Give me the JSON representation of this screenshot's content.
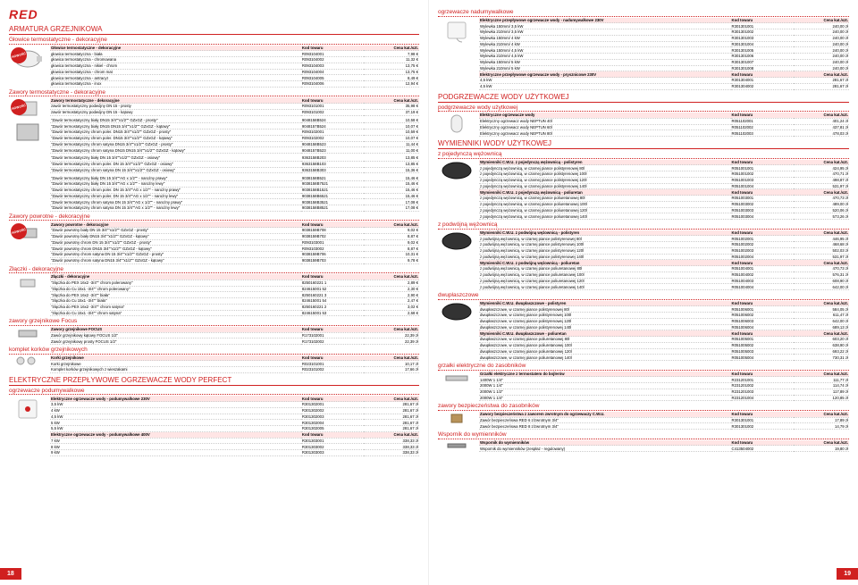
{
  "logo": "RED",
  "page_left": "18",
  "page_right": "19",
  "left": {
    "h1": "ARMATURA GRZEJNIKOWA",
    "s1": {
      "h2": "Głowice termostatyczne - dekoracyjne",
      "hdr": [
        "Głowice termostatyczne - dekoracyjne",
        "Kod towaru",
        "Cena kat./szt."
      ],
      "rows": [
        [
          "głowica termostatyczna - biała",
          "R093104001",
          "7,98 €"
        ],
        [
          "głowica termostatyczna - chromowana",
          "R093104002",
          "11,32 €"
        ],
        [
          "głowica termostatyczna - nikiel - chrom",
          "R093104003",
          "13,75 €"
        ],
        [
          "głowica termostatyczna - chrom mat",
          "R093104004",
          "13,75 €"
        ],
        [
          "głowica termostatyczna - antracyt",
          "R093104005",
          "8,49 €"
        ],
        [
          "głowica termostatyczna - inox",
          "R093104006",
          "12,94 €"
        ]
      ]
    },
    "s2": {
      "h2": "Zawory termostatyczne - dekoracyjne",
      "hdr": [
        "Zawory termostatyczne - dekoracyjne",
        "Kod towaru",
        "Cena kat./szt."
      ],
      "g1": [
        [
          "zawór termostatyczny podwójny DN 15 - prosty",
          "R093101001",
          "35,98 €"
        ],
        [
          "zawór termostatyczny podwójny DN 15 - kątowy",
          "R093101002",
          "37,19 €"
        ]
      ],
      "g2": [
        [
          "\"Zawór termostatyczny biały DN15 3/4\"\"x1/2\"\" GZxGZ - prosty\"",
          "9048158B524",
          "10,58 €"
        ],
        [
          "\"Zawór termostatyczny biały DN15 DN15 3/4\"\"x1/2\"\" GZxGZ - kątowy\"",
          "9048157B524",
          "10,07 €"
        ],
        [
          "\"Zawór termostatyczny chrom poler. DN15 3/4\"\"x1/2\"\" GZxGZ - prosty\"",
          "R093102001",
          "10,59 €"
        ],
        [
          "\"Zawór termostatyczny chrom poler. DN15 3/4\"\"x1/2\"\" GZxGZ - kątowy\"",
          "R093102002",
          "10,07 €"
        ],
        [
          "\"Zawór termostatyczny chrom satyna DN15 3/4\"\"x1/2\"\" GZxGZ - prosty\"",
          "9048158B523",
          "11,44 €"
        ],
        [
          "\"Zawór termostatyczny chrom satyna DN15 DN15 3/4\"\"x1/2\"\" GZxGZ - kątowy\"",
          "9048157B523",
          "11,00 €"
        ]
      ],
      "g3": [
        [
          "\"Zawór termostatyczny biały DN 15 3/4\"\"x1/2\"\" GZxGZ - osiowy\"",
          "9363158B203",
          "13,85 €"
        ],
        [
          "\"Zawór termostatyczny chrom poler. DN 15 3/4\"\"x1/2\"\" GZxGZ - osiowy\"",
          "9363158B103",
          "13,85 €"
        ],
        [
          "\"Zawór termostatyczny chrom satyna DN 15 3/4\"\"x1/2\"\" GZxGZ - osiowy\"",
          "9363158B303",
          "15,36 €"
        ]
      ],
      "g4": [
        [
          "\"Zawór termostatyczny biały DN 15 3/4\"\"AG x 1/2\"\" - narożny prawy\"",
          "9038158B521",
          "15,46 €"
        ],
        [
          "\"Zawór termostatyczny biały DN 15 3/4\"\"AG x 1/2\"\" - narożny lewy\"",
          "9038158B7521",
          "15,46 €"
        ],
        [
          "\"Zawór termostatyczny chrom poler. DN 15 3/4\"\"AG x 1/2\"\" - narożny prawy\"",
          "9038158B1521",
          "15,46 €"
        ],
        [
          "\"Zawór termostatyczny chrom poler. DN 15 3/4\"\"AG x 1/2\"\" - narożny lewy\"",
          "9038158B6521",
          "15,46 €"
        ],
        [
          "\"Zawór termostatyczny chrom satyna DN 15 3/4\"\"AG x 1/2\"\" - narożny prawy\"",
          "9038158B3521",
          "17,08 €"
        ],
        [
          "\"Zawór termostatyczny chrom satyna DN 15 3/4\"\"AG x 1/2\"\" - narożny lewy\"",
          "9038158B8521",
          "17,08 €"
        ]
      ]
    },
    "s3": {
      "h2": "Zawory powrotne - dekoracyjne",
      "hdr": [
        "Zawory powrotne - dekoracyjne",
        "Kod towaru",
        "Cena kat./szt."
      ],
      "rows": [
        [
          "\"Zawór powrotny biały DN 15 3/4\"\"x1/2\"\" GZxGZ - prosty\"",
          "9038159B708",
          "9,02 €"
        ],
        [
          "\"Zawór powrotny biały DN15 3/4\"\"x1/2\"\" GZxGZ - kątowy\"",
          "9038159B702",
          "8,87 €"
        ],
        [
          "\"Zawór powrotny chrom DN 15 3/4\"\"x1/2\"\" GZxGZ - prosty\"",
          "R093103001",
          "9,02 €"
        ],
        [
          "\"Zawór powrotny chrom DN15 3/4\"\"x1/2\"\" GZxGZ - kątowy\"",
          "R093103002",
          "8,87 €"
        ],
        [
          "\"Zawór powrotny chrom satyna DN 15 3/4\"\"x1/2\"\" GZxGZ - prosty\"",
          "9038159B706",
          "10,31 €"
        ],
        [
          "\"Zawór powrotny chrom satyna DN15 3/4\"\"x1/2\"\" GZxGZ - kątowy\"",
          "9038159B703",
          "9,78 €"
        ]
      ]
    },
    "s4": {
      "h2": "Złączki - dekoracyjne",
      "hdr": [
        "Złączki - dekoracyjne",
        "Kod towaru",
        "Cena kat./szt."
      ],
      "rows": [
        [
          "\"złączka do PEX 16x2 -3/4\"\" chrom polerowany\"",
          "8250160221 1",
          "2,89 €"
        ],
        [
          "\"złączka do Cu 15x1 -3/4\"\" chrom polerowany\"",
          "824615001 52",
          "2,30 €"
        ],
        [
          "\"złączka do PEX 16x2 -3/4\"\" biała\"",
          "8250160221 3",
          "2,90 €"
        ],
        [
          "\"złączka do Cu 15x1 -3/4\"\" biała\"",
          "824615001 54",
          "2,47 €"
        ],
        [
          "\"złączka do PEX 16x2 -3/4\"\" chrom satyna\"",
          "8250160221 2",
          "3,02 €"
        ],
        [
          "\"złączka do Cu 15x1 -3/4\"\" chrom satyna\"",
          "824615001 53",
          "2,68 €"
        ]
      ]
    },
    "s5": {
      "h2": "zawory grzejnikowe Focus",
      "hdr": [
        "Zawory grzejnikowe FOCUS",
        "Kod towaru",
        "Cena kat./szt."
      ],
      "rows": [
        [
          "Zawór grzejnikowy kątowy FOCUS 1/2\"",
          "R173102001",
          "22,39 zł"
        ],
        [
          "Zawór grzejnikowy prosty FOCUS 1/2\"",
          "R173102002",
          "22,39 zł"
        ]
      ]
    },
    "s6": {
      "h2": "komplet korków grzejnikowych",
      "hdr": [
        "Korki grzejnikowe",
        "Kod towaru",
        "Cena kat./szt."
      ],
      "rows": [
        [
          "Korki grzejnikowe",
          "R023101001",
          "10,17 zł"
        ],
        [
          "Komplet korków grzejnikowych z wieszakami",
          "R023101002",
          "17,66 zł"
        ]
      ]
    },
    "h1b": "ELEKTRYCZNE PRZEPŁYWOWE OGRZEWACZE WODY PERFECT",
    "s7": {
      "h2": "ogrzewacze podumywalkowe",
      "hdr1": [
        "Elektryczne ogrzewacze wody - podumywalkowe 230V",
        "Kod towaru",
        "Cena kat./szt."
      ],
      "g1": [
        [
          "3,5 kW",
          "R301302001",
          "281,67 zł"
        ],
        [
          "4 kW",
          "R301302002",
          "281,67 zł"
        ],
        [
          "4,5 kW",
          "R301302003",
          "281,67 zł"
        ],
        [
          "5 kW",
          "R301302004",
          "281,67 zł"
        ],
        [
          "5,5 kW",
          "R301302005",
          "281,67 zł"
        ]
      ],
      "hdr2": [
        "Elektryczne ogrzewacze wody - podumywalkowe 400V",
        "Kod towaru",
        "Cena kat./szt."
      ],
      "g2": [
        [
          "7 kW",
          "R301303001",
          "338,33 zł"
        ],
        [
          "8 kW",
          "R301303002",
          "338,33 zł"
        ],
        [
          "9 kW",
          "R301303003",
          "338,33 zł"
        ]
      ]
    }
  },
  "right": {
    "s1": {
      "h2": "ogrzewacze nadumywalkowe",
      "hdr1": [
        "Elektryczne przepływowe ogrzewacze wody - nadumywalkowe 230V",
        "Kod towaru",
        "Cena kat./szt."
      ],
      "g1": [
        [
          "Wylewka 150mm/ 3,5 kW",
          "R301301001",
          "240,00 zł"
        ],
        [
          "Wylewka 210mm/ 3,5 kW",
          "R301301002",
          "240,00 zł"
        ],
        [
          "Wylewka 150mm/ 4 kW",
          "R301301003",
          "240,00 zł"
        ],
        [
          "Wylewka 210mm/ 4 kW",
          "R301301004",
          "240,00 zł"
        ],
        [
          "Wylewka 150mm/ 4,5 kW",
          "R301301005",
          "240,00 zł"
        ],
        [
          "Wylewka 210mm/ 4,5 kW",
          "R301301006",
          "240,00 zł"
        ],
        [
          "Wylewka 150mm/ 5 kW",
          "R301301007",
          "240,00 zł"
        ],
        [
          "Wylewka 210mm/ 5 kW",
          "R301301008",
          "240,00 zł"
        ]
      ],
      "hdr2": [
        "Elektryczne przepływowe ogrzewacze wody - prysznicowe 230V",
        "Kod towaru",
        "Cena kat./szt."
      ],
      "g2": [
        [
          "4,5 kW",
          "R301304001",
          "281,67 zł"
        ],
        [
          "4,5 kW",
          "R301304002",
          "281,67 zł"
        ]
      ]
    },
    "h1a": "PODGRZEWACZE WODY UŻYTKOWEJ",
    "s2": {
      "h2": "podgrzewacze wody użytkowej",
      "hdr": [
        "Elektryczne ogrzewacze wody",
        "Kod towaru",
        "Cena kat./szt."
      ],
      "rows": [
        [
          "Elektryczny ogrzewacz wody NEPTUN 40l",
          "R051102001",
          "401,24 zł"
        ],
        [
          "Elektryczny ogrzewacz wody NEPTUN 60l",
          "R051102002",
          "437,81 zł"
        ],
        [
          "Elektryczny ogrzewacz wody NEPTUN 80l",
          "R051102003",
          "478,03 zł"
        ]
      ]
    },
    "h1b": "WYMIENNIKI WODY UŻYTKOWEJ",
    "s3": {
      "h2": "z pojedynczą wężownicą",
      "hdr1": [
        "Wymienniki C.W.U. z pojedynczą wężownicą - polistyren",
        "Kod towaru",
        "Cena kat./szt."
      ],
      "g1": [
        [
          "z pojedynczą wężownicą, w czarnej piance polistyrenowej 80l",
          "R051001001",
          "424,95 zł"
        ],
        [
          "z pojedynczą wężownicą, w czarnej piance polistyrenowej 100l",
          "R051001002",
          "470,71 zł"
        ],
        [
          "z pojedynczą wężownicą, w czarnej piance polistyrenowej 120l",
          "R051001003",
          "498,87 zł"
        ],
        [
          "z pojedynczą wężownicą, w czarnej piance polistyrenowej 140l",
          "R051001004",
          "531,97 zł"
        ]
      ],
      "hdr2": [
        "Wymienniki C.W.U. z pojedynczą wężownicą - poliuretan",
        "Kod towaru",
        "Cena kat./szt."
      ],
      "g2": [
        [
          "z pojedynczą wężownicą, w czarnej piance poliuretanowej 80l",
          "R051003001",
          "470,73 zł"
        ],
        [
          "z pojedynczą wężownicą, w czarnej piance poliuretanowej 100l",
          "R051003002",
          "489,00 zł"
        ],
        [
          "z pojedynczą wężownicą, w czarnej piance poliuretanowej 120l",
          "R051003003",
          "520,06 zł"
        ],
        [
          "z pojedynczą wężownicą, w czarnej piance poliuretanowej 140l",
          "R051003004",
          "573,26 zł"
        ]
      ]
    },
    "s4": {
      "h2": "z podwójną wężownicą",
      "hdr1": [
        "Wymienniki C.W.U. z podwójną wężownicą - polistyren",
        "Kod towaru",
        "Cena kat./szt."
      ],
      "g1": [
        [
          "z podwójną wężownicą, w czarnej piance polistyrenowej 80l",
          "R051002001",
          "446,95 zł"
        ],
        [
          "z podwójną wężownicą, w czarnej piance polistyrenowej 100l",
          "R051002002",
          "468,68 zł"
        ],
        [
          "z podwójną wężownicą, w czarnej piance polistyrenowej 120l",
          "R051002003",
          "502,03 zł"
        ],
        [
          "z podwójną wężownicą, w czarnej piance polistyrenowej 140l",
          "R051002004",
          "531,97 zł"
        ]
      ],
      "hdr2": [
        "Wymienniki C.W.U. z podwójną wężownicą - poliuretan",
        "Kod towaru",
        "Cena kat./szt."
      ],
      "g2": [
        [
          "z podwójną wężownicą, w czarnej piance poliuretanowej 80l",
          "R051004001",
          "470,73 zł"
        ],
        [
          "z podwójną wężownicą, w czarnej piance poliuretanowej 100l",
          "R051004002",
          "576,31 zł"
        ],
        [
          "z podwójną wężownicą, w czarnej piance poliuretanowej 120l",
          "R051004003",
          "608,90 zł"
        ],
        [
          "z podwójną wężownicą, w czarnej piance poliuretanowej 140l",
          "R051004004",
          "642,00 zł"
        ]
      ]
    },
    "s5": {
      "h2": "dwupłaszczowe",
      "hdr1": [
        "Wymienniki C.W.U. dwupłaszczowe - polistyren",
        "Kod towaru",
        "Cena kat./szt."
      ],
      "g1": [
        [
          "dwupłaszczowe, w czarnej piance polistyrenowej 80l",
          "R051006001",
          "584,05 zł"
        ],
        [
          "dwupłaszczowe, w czarnej piance polistyrenowej 100l",
          "R051006002",
          "611,47 zł"
        ],
        [
          "dwupłaszczowe, w czarnej piance polistyrenowej 120l",
          "R051006003",
          "642,00 zł"
        ],
        [
          "dwupłaszczowe, w czarnej piance polistyrenowej 140l",
          "R051006004",
          "689,13 zł"
        ]
      ],
      "hdr2": [
        "Wymienniki C.W.U. dwupłaszczowe - poliuretan",
        "Kod towaru",
        "Cena kat./szt."
      ],
      "g2": [
        [
          "dwupłaszczowe, w czarnej piance poliuretanowej 80l",
          "R051005001",
          "603,20 zł"
        ],
        [
          "dwupłaszczowe, w czarnej piance poliuretanowej 100l",
          "R051005002",
          "638,90 zł"
        ],
        [
          "dwupłaszczowe, w czarnej piance poliuretanowej 120l",
          "R051005003",
          "693,22 zł"
        ],
        [
          "dwupłaszczowe, w czarnej piance poliuretanowej 140l",
          "R051005004",
          "730,31 zł"
        ]
      ]
    },
    "s6": {
      "h2": "grzałki elektryczne do zasobników",
      "hdr": [
        "Grzałki elektryczne z termostatem do bojlerów",
        "Kod towaru",
        "Cena kat./szt."
      ],
      "rows": [
        [
          "1400W 1 1/4\"",
          "R231201001",
          "111,77 zł"
        ],
        [
          "2000W 1 1/4\"",
          "R231201002",
          "114,74 zł"
        ],
        [
          "2000W 1 1/2\"",
          "R231201003",
          "117,89 zł"
        ],
        [
          "2000W 1 1/4\"",
          "R231201004",
          "120,85 zł"
        ]
      ]
    },
    "s7": {
      "h2": "zawory bezpieczeństwa do zasobników",
      "hdr": [
        "Zawory bezpieczeństwa z zaworem zwrotnym do ogrzewaczy C.W.U.",
        "Kod towaru",
        "Cena kat./szt."
      ],
      "rows": [
        [
          "Zawór bezpieczeńswa RED 6 z/zwrotnym 3/4\"",
          "R301301001",
          "17,89 zł"
        ],
        [
          "Zawór bezpieczeńswa RED 8 z/zwrotnym 3/4\"",
          "R301301002",
          "14,79 zł"
        ]
      ]
    },
    "s8": {
      "h2": "Wspornik do wymienników",
      "hdr": [
        "Wspornik do wymienników",
        "Kod towaru",
        "Cena kat./szt."
      ],
      "rows": [
        [
          "Wspornik do wymienników (zespłaz - regulowany)",
          "C413504002",
          "19,80 zł"
        ]
      ]
    }
  }
}
